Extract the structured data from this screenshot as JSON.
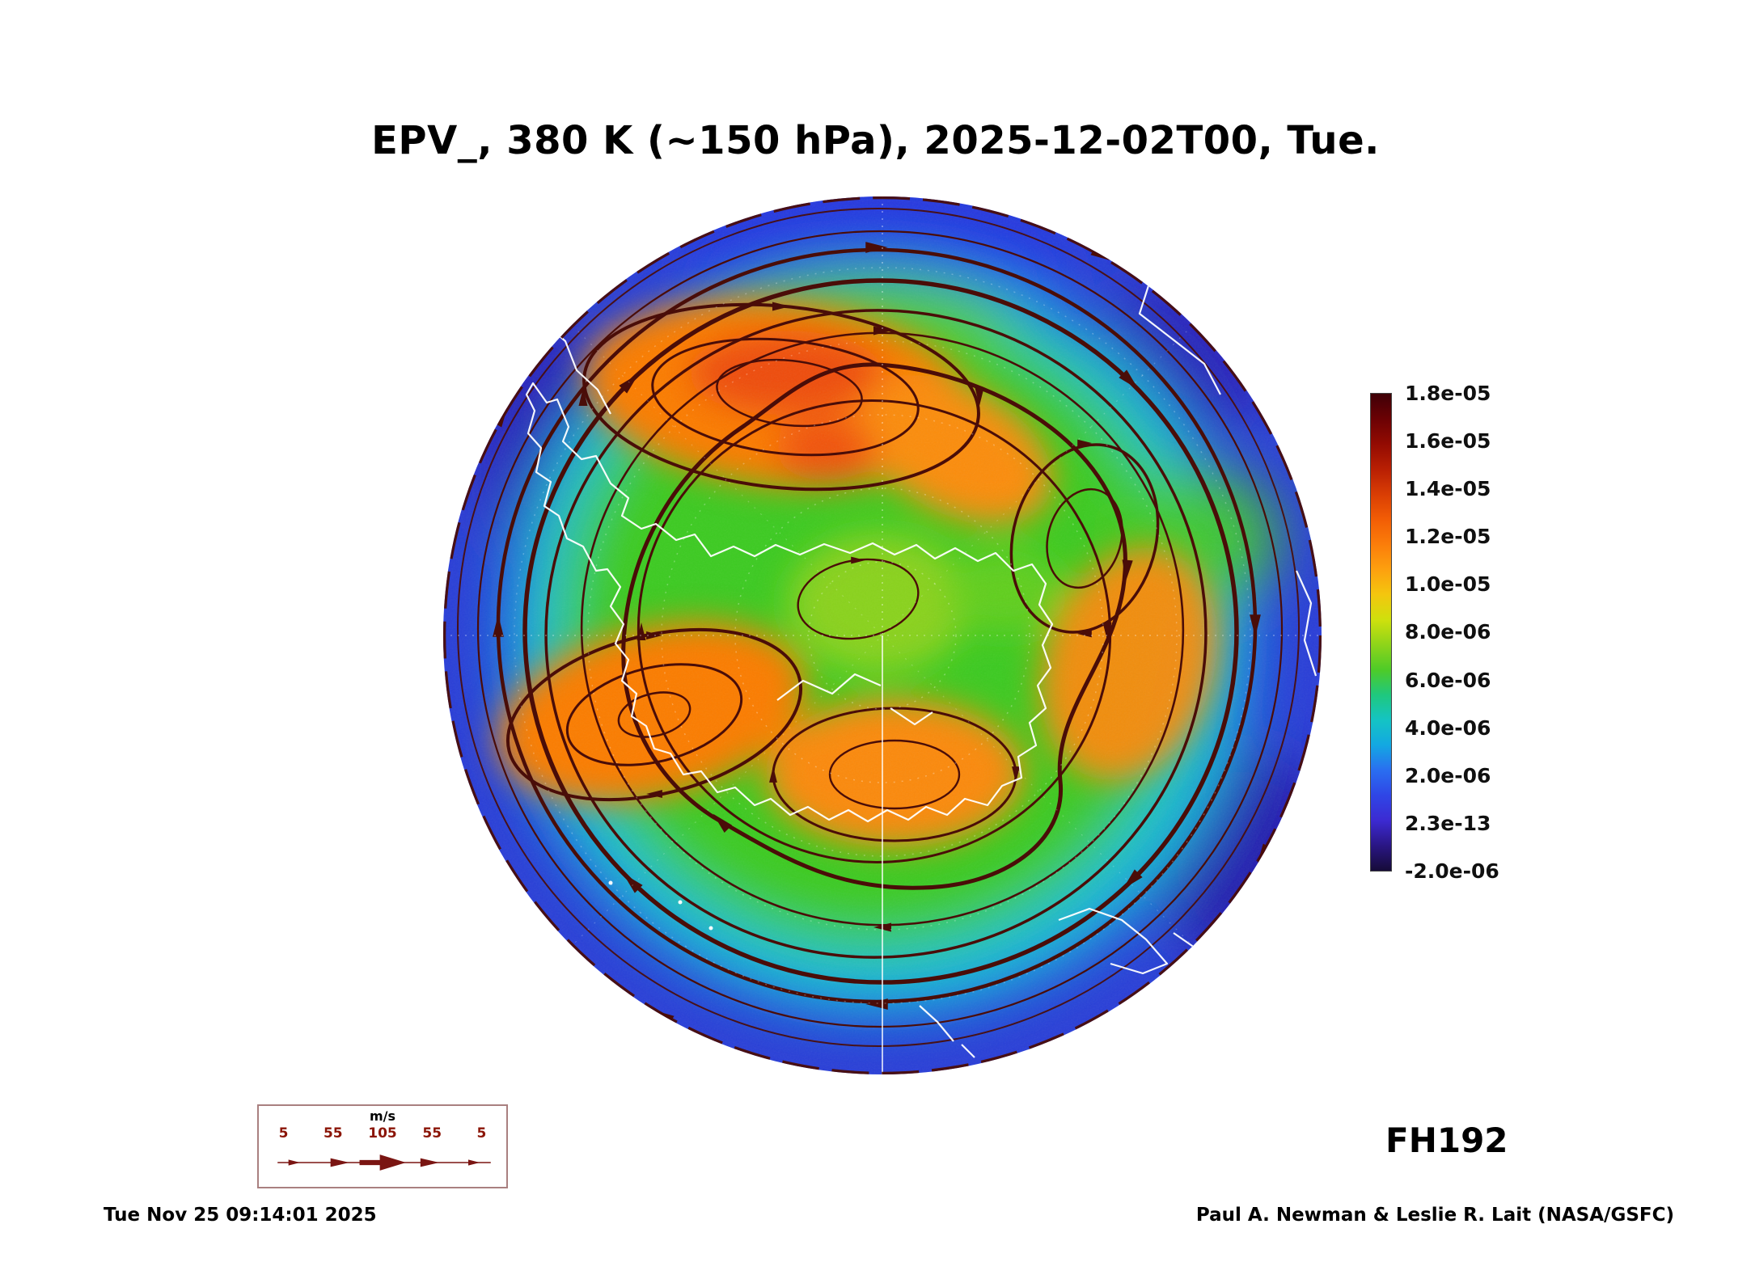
{
  "title": "EPV_, 380 K (~150 hPa), 2025-12-02T00, Tue.",
  "footer": {
    "timestamp": "Tue Nov 25 09:14:01 2025",
    "forecast_hour": "FH192",
    "credit": "Paul A. Newman & Leslie R. Lait (NASA/GSFC)"
  },
  "colorbar": {
    "ticks": [
      "1.8e-05",
      "1.6e-05",
      "1.4e-05",
      "1.2e-05",
      "1.0e-05",
      "8.0e-06",
      "6.0e-06",
      "4.0e-06",
      "2.0e-06",
      "2.3e-13",
      "-2.0e-06"
    ],
    "colors": [
      "#3f0007",
      "#6b0104",
      "#930b02",
      "#b81f03",
      "#d93d04",
      "#f25d05",
      "#fb7d0a",
      "#fda00f",
      "#f4c60e",
      "#cfe00d",
      "#8ed41a",
      "#4ecb28",
      "#1fc87e",
      "#14c4c4",
      "#13a8e2",
      "#2a6ef0",
      "#2f46e6",
      "#3c2ad2",
      "#2a1684",
      "#160b38"
    ]
  },
  "wind_legend": {
    "unit": "m/s",
    "speeds": [
      "5",
      "55",
      "105",
      "55",
      "5"
    ]
  },
  "chart_data": {
    "type": "heatmap",
    "title": "EPV_, 380 K (~150 hPa), 2025-12-02T00, Tue.",
    "colorbar_tick_values": [
      1.8e-05,
      1.6e-05,
      1.4e-05,
      1.2e-05,
      1e-05,
      8e-06,
      6e-06,
      4e-06,
      2e-06,
      2.3e-13,
      -2e-06
    ],
    "colorbar_range": [
      -2e-06,
      1.8e-05
    ],
    "streamline_speed_legend_mps": [
      5,
      55,
      105,
      55,
      5
    ],
    "streamline_speed_unit": "m/s",
    "forecast_hour_label": "FH192",
    "generated_label": "Tue Nov 25 09:14:01 2025",
    "credit_label": "Paul A. Newman & Leslie R. Lait (NASA/GSFC)"
  }
}
